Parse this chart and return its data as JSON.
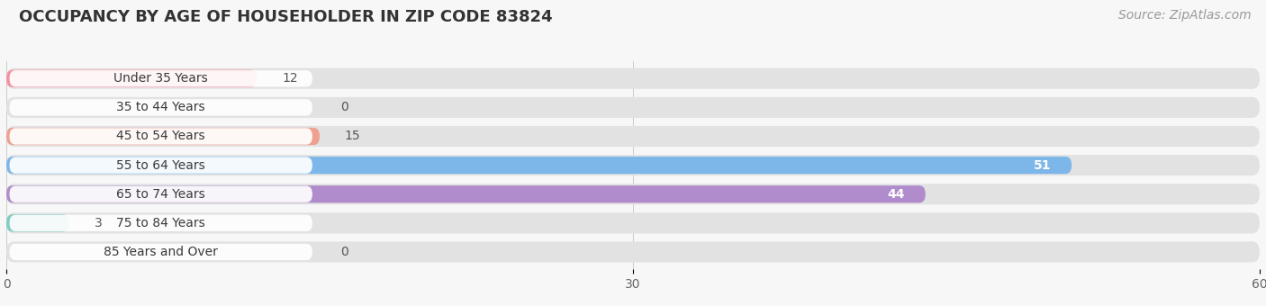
{
  "title": "OCCUPANCY BY AGE OF HOUSEHOLDER IN ZIP CODE 83824",
  "source": "Source: ZipAtlas.com",
  "categories": [
    "Under 35 Years",
    "35 to 44 Years",
    "45 to 54 Years",
    "55 to 64 Years",
    "65 to 74 Years",
    "75 to 84 Years",
    "85 Years and Over"
  ],
  "values": [
    12,
    0,
    15,
    51,
    44,
    3,
    0
  ],
  "bar_colors": [
    "#F4909F",
    "#F5C49A",
    "#EFA090",
    "#7DB6E8",
    "#B08CCC",
    "#7ECEC0",
    "#B8BCE8"
  ],
  "xlim": [
    0,
    60
  ],
  "xticks": [
    0,
    30,
    60
  ],
  "background_color": "#f7f7f7",
  "bar_bg_color": "#e8e8e8",
  "title_fontsize": 13,
  "label_fontsize": 10,
  "value_fontsize": 9,
  "source_fontsize": 10
}
